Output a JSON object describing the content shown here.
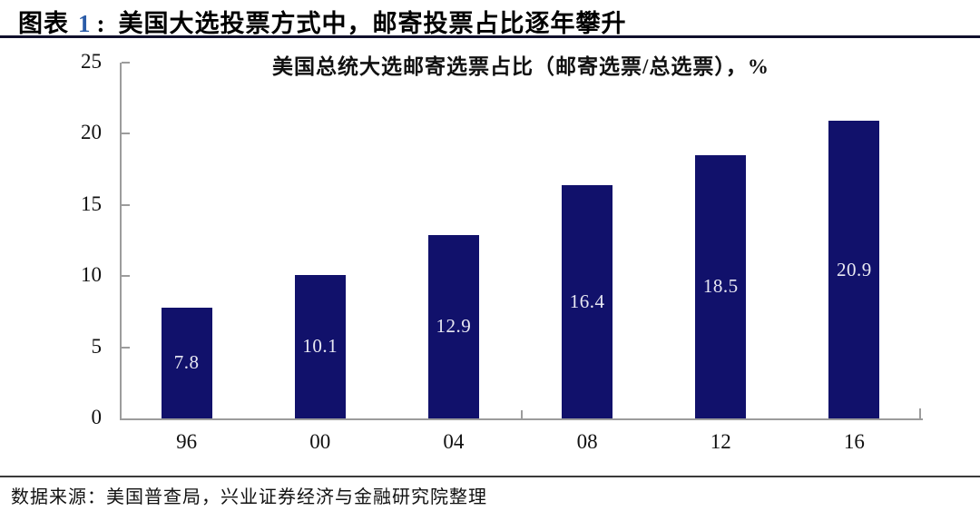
{
  "header": {
    "prefix": "图表",
    "number": "1",
    "separator": ":",
    "title": "美国大选投票方式中，邮寄投票占比逐年攀升"
  },
  "chart_data": {
    "type": "bar",
    "title": "美国总统大选邮寄选票占比（邮寄选票/总选票），%",
    "categories": [
      "96",
      "00",
      "04",
      "08",
      "12",
      "16"
    ],
    "values": [
      7.8,
      10.1,
      12.9,
      16.4,
      18.5,
      20.9
    ],
    "xlabel": "",
    "ylabel": "",
    "ylim": [
      0,
      25
    ],
    "yticks": [
      0,
      5,
      10,
      15,
      20,
      25
    ],
    "grid": false,
    "legend_position": "none",
    "value_labels_position": "inside-center",
    "bar_color": "#11116b",
    "value_label_color": "#e8e8f2",
    "axis_color": "#9c9c9c"
  },
  "footer": {
    "source": "数据来源：美国普查局，兴业证券经济与金融研究院整理"
  },
  "colors": {
    "figure_number": "#2b5ca8",
    "header_rule": "#10102c",
    "footer_rule": "#3a3a3a"
  }
}
